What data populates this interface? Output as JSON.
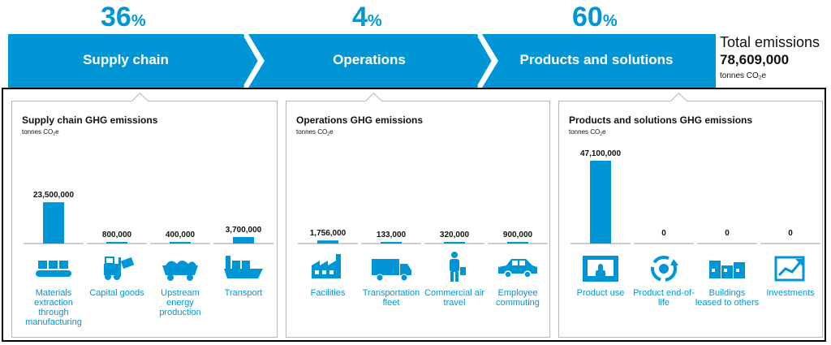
{
  "stages": [
    {
      "pct": "36",
      "pct_unit": "%",
      "label": "Supply chain"
    },
    {
      "pct": "4",
      "pct_unit": "%",
      "label": "Operations"
    },
    {
      "pct": "60",
      "pct_unit": "%",
      "label": "Products and solutions"
    }
  ],
  "total": {
    "title": "Total emissions",
    "value": "78,609,000",
    "unit": "tonnes CO",
    "unit_sub": "2",
    "unit_suffix": "e"
  },
  "colors": {
    "accent": "#0096d6",
    "text": "#111111",
    "border": "#b8b8b8"
  },
  "chart_data": [
    {
      "type": "bar",
      "title": "Supply chain GHG emissions",
      "ylabel": "tonnes CO2e",
      "categories": [
        "Materials extraction through manufacturing",
        "Capital goods",
        "Upstream energy production",
        "Transport"
      ],
      "values": [
        23500000,
        800000,
        400000,
        3700000
      ],
      "value_labels": [
        "23,500,000",
        "800,000",
        "400,000",
        "3,700,000"
      ],
      "icons": [
        "conveyor-icon",
        "forklift-icon",
        "coal-cart-icon",
        "cargo-ship-icon"
      ]
    },
    {
      "type": "bar",
      "title": "Operations GHG emissions",
      "ylabel": "tonnes CO2e",
      "categories": [
        "Facilities",
        "Transportation fleet",
        "Commercial air travel",
        "Employee commuting"
      ],
      "values": [
        1756000,
        133000,
        320000,
        900000
      ],
      "value_labels": [
        "1,756,000",
        "133,000",
        "320,000",
        "900,000"
      ],
      "icons": [
        "factory-icon",
        "truck-icon",
        "traveler-icon",
        "car-icon"
      ]
    },
    {
      "type": "bar",
      "title": "Products and solutions GHG emissions",
      "ylabel": "tonnes CO2e",
      "categories": [
        "Product use",
        "Product end-of-life",
        "Buildings leased to others",
        "Investments"
      ],
      "values": [
        47100000,
        0,
        0,
        0
      ],
      "value_labels": [
        "47,100,000",
        "0",
        "0",
        "0"
      ],
      "icons": [
        "touch-screen-icon",
        "recycle-icon",
        "buildings-icon",
        "growth-chart-icon"
      ]
    }
  ]
}
